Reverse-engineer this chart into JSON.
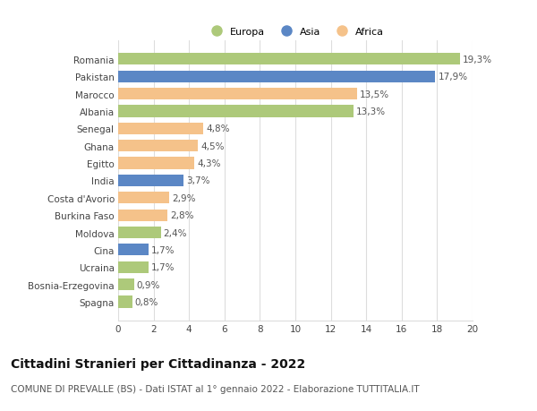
{
  "countries": [
    "Romania",
    "Pakistan",
    "Marocco",
    "Albania",
    "Senegal",
    "Ghana",
    "Egitto",
    "India",
    "Costa d'Avorio",
    "Burkina Faso",
    "Moldova",
    "Cina",
    "Ucraina",
    "Bosnia-Erzegovina",
    "Spagna"
  ],
  "values": [
    19.3,
    17.9,
    13.5,
    13.3,
    4.8,
    4.5,
    4.3,
    3.7,
    2.9,
    2.8,
    2.4,
    1.7,
    1.7,
    0.9,
    0.8
  ],
  "labels": [
    "19,3%",
    "17,9%",
    "13,5%",
    "13,3%",
    "4,8%",
    "4,5%",
    "4,3%",
    "3,7%",
    "2,9%",
    "2,8%",
    "2,4%",
    "1,7%",
    "1,7%",
    "0,9%",
    "0,8%"
  ],
  "colors": [
    "#adc97a",
    "#5b87c5",
    "#f5c28a",
    "#adc97a",
    "#f5c28a",
    "#f5c28a",
    "#f5c28a",
    "#5b87c5",
    "#f5c28a",
    "#f5c28a",
    "#adc97a",
    "#5b87c5",
    "#adc97a",
    "#adc97a",
    "#adc97a"
  ],
  "legend_labels": [
    "Europa",
    "Asia",
    "Africa"
  ],
  "legend_colors": [
    "#adc97a",
    "#5b87c5",
    "#f5c28a"
  ],
  "title": "Cittadini Stranieri per Cittadinanza - 2022",
  "subtitle": "COMUNE DI PREVALLE (BS) - Dati ISTAT al 1° gennaio 2022 - Elaborazione TUTTITALIA.IT",
  "xlim": [
    0,
    20
  ],
  "xticks": [
    0,
    2,
    4,
    6,
    8,
    10,
    12,
    14,
    16,
    18,
    20
  ],
  "background_color": "#ffffff",
  "grid_color": "#dddddd",
  "bar_height": 0.68,
  "label_fontsize": 7.5,
  "tick_fontsize": 7.5,
  "title_fontsize": 10,
  "subtitle_fontsize": 7.5
}
